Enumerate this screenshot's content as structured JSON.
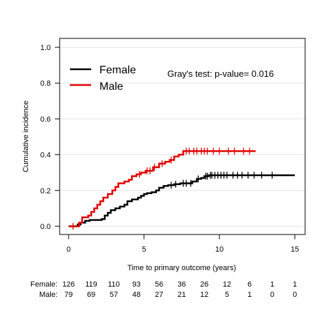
{
  "chart_data": {
    "type": "line",
    "line_shape": "step",
    "xlabel": "Time to primary outcome (years)",
    "ylabel": "Cumulative incidence",
    "xlim": [
      0,
      15
    ],
    "ylim": [
      0,
      1
    ],
    "x_ticks": [
      "0",
      "5",
      "10",
      "15"
    ],
    "y_ticks": [
      "0.0",
      "0.2",
      "0.4",
      "0.6",
      "0.8",
      "1.0"
    ],
    "grid": "horizontal",
    "legend_position": "top-left",
    "annotation": "Gray's test: p-value= 0.016",
    "series": [
      {
        "name": "Female",
        "color": "#000000",
        "step_points": [
          [
            0,
            0
          ],
          [
            0.6,
            0
          ],
          [
            0.6,
            0.01
          ],
          [
            0.8,
            0.02
          ],
          [
            1.1,
            0.03
          ],
          [
            1.4,
            0.035
          ],
          [
            1.7,
            0.035
          ],
          [
            2.2,
            0.04
          ],
          [
            2.4,
            0.06
          ],
          [
            2.6,
            0.075
          ],
          [
            2.8,
            0.09
          ],
          [
            3.1,
            0.1
          ],
          [
            3.4,
            0.11
          ],
          [
            3.7,
            0.12
          ],
          [
            3.9,
            0.14
          ],
          [
            4.2,
            0.15
          ],
          [
            4.6,
            0.16
          ],
          [
            4.8,
            0.17
          ],
          [
            5.0,
            0.18
          ],
          [
            5.2,
            0.185
          ],
          [
            5.5,
            0.19
          ],
          [
            5.8,
            0.2
          ],
          [
            6.0,
            0.215
          ],
          [
            6.3,
            0.225
          ],
          [
            6.6,
            0.23
          ],
          [
            7.0,
            0.235
          ],
          [
            7.4,
            0.24
          ],
          [
            8.0,
            0.24
          ],
          [
            8.2,
            0.25
          ],
          [
            8.5,
            0.265
          ],
          [
            8.8,
            0.27
          ],
          [
            9.0,
            0.28
          ],
          [
            9.3,
            0.285
          ],
          [
            15,
            0.285
          ]
        ],
        "censored_x": [
          6.8,
          7.1,
          7.6,
          7.8,
          8.1,
          8.6,
          9.1,
          9.2,
          9.4,
          9.5,
          9.7,
          9.9,
          10.1,
          10.3,
          10.5,
          10.9,
          11.2,
          11.5,
          11.9,
          12.3,
          12.8,
          13.5
        ],
        "n_at_risk": [
          126,
          119,
          110,
          93,
          56,
          36,
          26,
          12,
          6,
          1,
          1
        ]
      },
      {
        "name": "Male",
        "color": "#e00000",
        "step_points": [
          [
            0,
            0
          ],
          [
            0.7,
            0
          ],
          [
            0.7,
            0.02
          ],
          [
            0.9,
            0.05
          ],
          [
            1.3,
            0.06
          ],
          [
            1.5,
            0.08
          ],
          [
            1.7,
            0.1
          ],
          [
            1.9,
            0.12
          ],
          [
            2.1,
            0.14
          ],
          [
            2.3,
            0.16
          ],
          [
            2.6,
            0.18
          ],
          [
            2.9,
            0.2
          ],
          [
            3.1,
            0.22
          ],
          [
            3.3,
            0.24
          ],
          [
            3.7,
            0.25
          ],
          [
            4.0,
            0.26
          ],
          [
            4.2,
            0.28
          ],
          [
            4.5,
            0.29
          ],
          [
            4.8,
            0.3
          ],
          [
            5.1,
            0.31
          ],
          [
            5.6,
            0.33
          ],
          [
            6.0,
            0.35
          ],
          [
            6.4,
            0.36
          ],
          [
            6.7,
            0.37
          ],
          [
            7.0,
            0.39
          ],
          [
            7.3,
            0.4
          ],
          [
            7.6,
            0.42
          ],
          [
            12.4,
            0.42
          ]
        ],
        "censored_x": [
          0.3,
          4.7,
          5.2,
          5.4,
          5.7,
          6.2,
          6.8,
          7.8,
          8.0,
          8.3,
          8.5,
          8.8,
          9.0,
          9.2,
          9.6,
          10.0,
          10.6,
          11.0,
          11.6,
          12.0
        ],
        "n_at_risk": [
          79,
          69,
          57,
          48,
          27,
          21,
          12,
          5,
          1,
          0,
          0
        ]
      }
    ],
    "risk_table": {
      "times": [
        0,
        1.5,
        3,
        4.5,
        6,
        7.5,
        9,
        10.5,
        12,
        13.5,
        15
      ],
      "labels": [
        "Female:",
        "Male:"
      ]
    }
  }
}
